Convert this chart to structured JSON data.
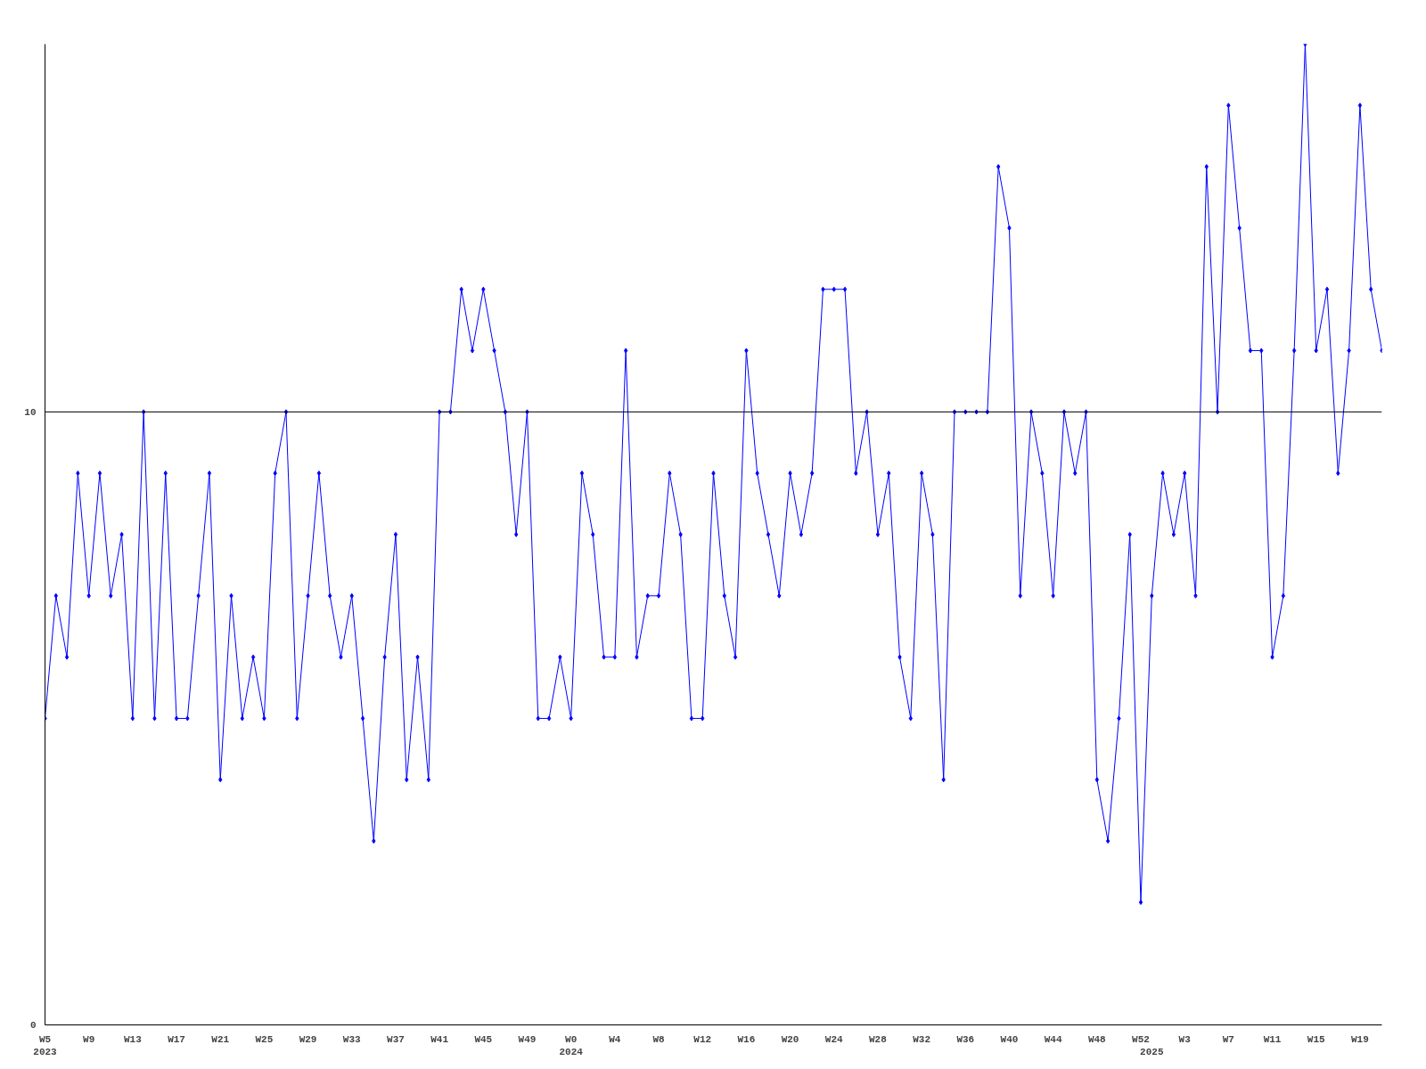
{
  "chart_data": {
    "type": "line",
    "color": "#0000ff",
    "marker": "diamond",
    "line_style": "solid",
    "grid": false,
    "categories": [
      "W5\n2023",
      null,
      null,
      null,
      "W9",
      null,
      null,
      null,
      "W13",
      null,
      null,
      null,
      "W17",
      null,
      null,
      null,
      "W21",
      null,
      null,
      null,
      "W25",
      null,
      null,
      null,
      "W29",
      null,
      null,
      null,
      "W33",
      null,
      null,
      null,
      "W37",
      null,
      null,
      null,
      "W41",
      null,
      null,
      null,
      "W45",
      null,
      null,
      null,
      "W49",
      null,
      null,
      null,
      "W0\n2024",
      null,
      null,
      null,
      "W4",
      null,
      null,
      null,
      "W8",
      null,
      null,
      null,
      "W12",
      null,
      null,
      null,
      "W16",
      null,
      null,
      null,
      "W20",
      null,
      null,
      null,
      "W24",
      null,
      null,
      null,
      "W28",
      null,
      null,
      null,
      "W32",
      null,
      null,
      null,
      "W36",
      null,
      null,
      null,
      "W40",
      null,
      null,
      null,
      "W44",
      null,
      null,
      null,
      "W48",
      null,
      null,
      null,
      "W52",
      "\n2025",
      null,
      null,
      "W3",
      null,
      null,
      null,
      "W7",
      null,
      null,
      null,
      "W11",
      null,
      null,
      null,
      "W15",
      null,
      null,
      null,
      "W19",
      null,
      null
    ],
    "values": [
      5,
      7,
      6,
      9,
      7,
      9,
      7,
      8,
      5,
      10,
      5,
      9,
      5,
      5,
      7,
      9,
      4,
      7,
      5,
      6,
      5,
      9,
      10,
      5,
      7,
      9,
      7,
      6,
      7,
      5,
      3,
      6,
      8,
      4,
      6,
      4,
      10,
      10,
      12,
      11,
      12,
      11,
      10,
      8,
      10,
      5,
      5,
      6,
      5,
      9,
      8,
      6,
      6,
      11,
      6,
      7,
      7,
      9,
      8,
      5,
      5,
      9,
      7,
      6,
      11,
      9,
      8,
      7,
      9,
      8,
      9,
      12,
      12,
      12,
      9,
      10,
      8,
      9,
      6,
      5,
      9,
      8,
      4,
      10,
      10,
      10,
      10,
      14,
      13,
      7,
      10,
      9,
      7,
      10,
      9,
      10,
      4,
      3,
      5,
      8,
      2,
      7,
      9,
      8,
      9,
      7,
      14,
      10,
      15,
      13,
      11,
      11,
      6,
      7,
      11,
      16,
      11,
      12,
      9,
      11,
      15,
      12,
      11
    ],
    "ylim": [
      0,
      16
    ],
    "yticks": [
      0,
      10
    ],
    "ref_lines": [
      {
        "axis": "y",
        "value": 10,
        "label": null,
        "color": "#000000"
      }
    ]
  }
}
